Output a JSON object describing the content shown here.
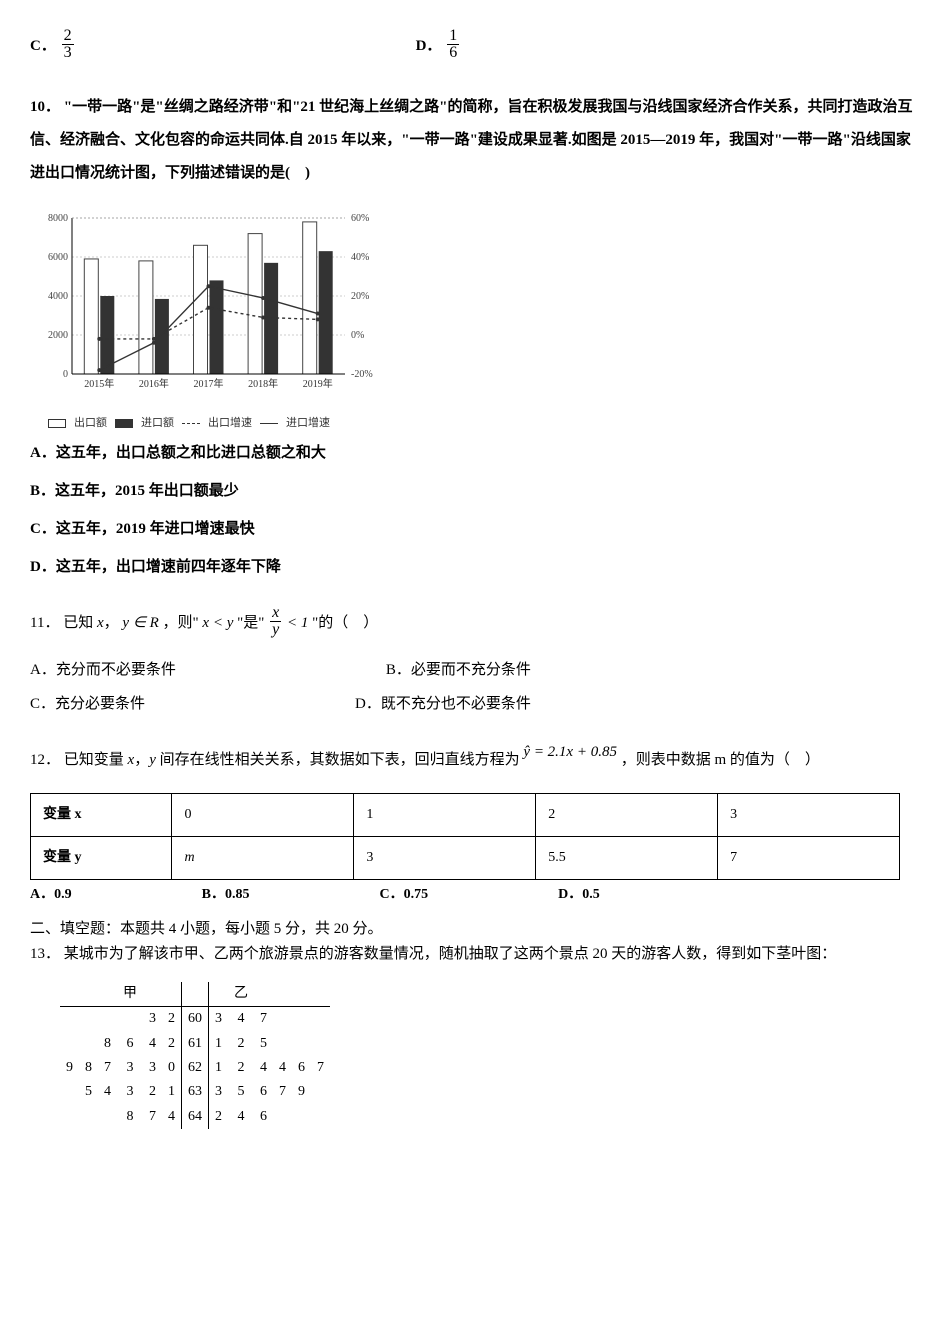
{
  "q9_options": {
    "c": {
      "label": "C．",
      "num": "2",
      "den": "3"
    },
    "d": {
      "label": "D．",
      "num": "1",
      "den": "6"
    }
  },
  "q10": {
    "number": "10．",
    "text1": "\"一带一路\"是\"丝绸之路经济带\"和\"21 世纪海上丝绸之路\"的简称，旨在积极发展我国与沿线国家经济合作关系，共同打造政治互信、经济融合、文化包容的命运共同体.自 2015 年以来，\"一带一路\"建设成果显著.如图是 2015—2019 年，我国对\"一带一路\"沿线国家进出口情况统计图，下列描述错误的是(　)",
    "chart": {
      "type": "bar-line-combo",
      "categories": [
        "2015年",
        "2016年",
        "2017年",
        "2018年",
        "2019年"
      ],
      "exports": [
        5900,
        5800,
        6600,
        7200,
        7800
      ],
      "imports": [
        4000,
        3850,
        4800,
        5700,
        6300
      ],
      "export_growth_pct": [
        -2,
        -2,
        14,
        9,
        8
      ],
      "import_growth_pct": [
        -18,
        -4,
        25,
        19,
        11
      ],
      "bar_colors": {
        "exports_fill": "#ffffff",
        "exports_stroke": "#444",
        "imports_fill": "#333333"
      },
      "line_styles": {
        "export_growth_dash": "3,3",
        "export_growth_color": "#333",
        "import_growth_color": "#333"
      },
      "y_left_max": 8000,
      "y_left_step": 2000,
      "y_right_min": -20,
      "y_right_max": 60,
      "y_right_step": 20,
      "axis_fontsize": 10,
      "background_color": "#ffffff",
      "grid_color": "#999"
    },
    "legend": {
      "exports": "出口额",
      "imports": "进口额",
      "export_growth": "出口增速",
      "import_growth": "进口增速"
    },
    "options": {
      "a": "A．这五年，出口总额之和比进口总额之和大",
      "b": "B．这五年，2015 年出口额最少",
      "c": "C．这五年，2019 年进口增速最快",
      "d": "D．这五年，出口增速前四年逐年下降"
    }
  },
  "q11": {
    "number": "11．",
    "prefix": "已知 ",
    "xvar": "x",
    "comma": "，",
    "yexpr": "y ∈ R",
    "mid1": "，则\" ",
    "cond1": "x < y",
    "mid2": " \"是\" ",
    "frac_num": "x",
    "frac_den": "y",
    "lt1": "< 1",
    "mid3": " \"的（　）",
    "options": {
      "a": "A．充分而不必要条件",
      "b": "B．必要而不充分条件",
      "c": "C．充分必要条件",
      "d": "D．既不充分也不必要条件"
    }
  },
  "q12": {
    "number": "12．",
    "prefix": "已知变量 ",
    "xvar": "x",
    "sep": "，",
    "yvar": "y",
    "text1": " 间存在线性相关关系，其数据如下表，回归直线方程为 ",
    "equation": "ŷ = 2.1x + 0.85",
    "text2": " ，则表中数据 m 的值为（　）",
    "table": {
      "headers": [
        "变量 x",
        "0",
        "1",
        "2",
        "3"
      ],
      "row2_label": "变量 y",
      "row2": [
        "m",
        "3",
        "5.5",
        "7"
      ]
    },
    "options": {
      "a": "A．0.9",
      "b": "B．0.85",
      "c": "C．0.75",
      "d": "D．0.5"
    }
  },
  "section2": "二、填空题：本题共 4 小题，每小题 5 分，共 20 分。",
  "q13": {
    "number": "13．",
    "text": "某城市为了解该市甲、乙两个旅游景点的游客数量情况，随机抽取了这两个景点 20 天的游客人数，得到如下茎叶图：",
    "stemleaf": {
      "left_label": "甲",
      "right_label": "乙",
      "stems": [
        "60",
        "61",
        "62",
        "63",
        "64"
      ],
      "left_leaves": [
        [
          "",
          "",
          "",
          "",
          "3",
          "2"
        ],
        [
          "",
          "",
          "8",
          "6",
          "4",
          "2"
        ],
        [
          "9",
          "8",
          "7",
          "3",
          "3",
          "0"
        ],
        [
          "",
          "5",
          "4",
          "3",
          "2",
          "1"
        ],
        [
          "",
          "",
          "",
          "8",
          "7",
          "4"
        ]
      ],
      "right_leaves": [
        [
          "3",
          "4",
          "7",
          "",
          "",
          ""
        ],
        [
          "1",
          "2",
          "5",
          "",
          "",
          ""
        ],
        [
          "1",
          "2",
          "4",
          "4",
          "6",
          "7"
        ],
        [
          "3",
          "5",
          "6",
          "7",
          "9",
          ""
        ],
        [
          "2",
          "4",
          "6",
          "",
          "",
          ""
        ]
      ]
    }
  }
}
